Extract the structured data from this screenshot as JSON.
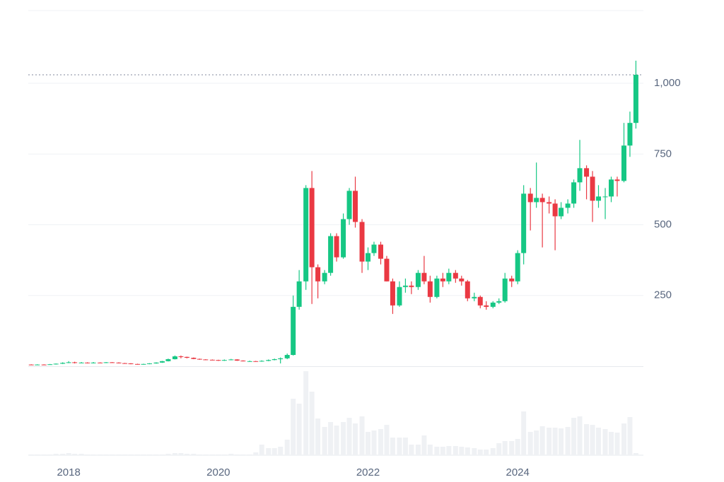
{
  "chart_data": {
    "type": "candlestick",
    "x": [
      2017.5,
      2017.58,
      2017.67,
      2017.75,
      2017.83,
      2017.92,
      2018.0,
      2018.08,
      2018.17,
      2018.25,
      2018.33,
      2018.42,
      2018.5,
      2018.58,
      2018.67,
      2018.75,
      2018.83,
      2018.92,
      2019.0,
      2019.08,
      2019.17,
      2019.25,
      2019.33,
      2019.42,
      2019.5,
      2019.58,
      2019.67,
      2019.75,
      2019.83,
      2019.92,
      2020.0,
      2020.08,
      2020.17,
      2020.25,
      2020.33,
      2020.42,
      2020.5,
      2020.58,
      2020.67,
      2020.75,
      2020.83,
      2020.92,
      2021.0,
      2021.08,
      2021.17,
      2021.25,
      2021.33,
      2021.42,
      2021.5,
      2021.58,
      2021.67,
      2021.75,
      2021.83,
      2021.92,
      2022.0,
      2022.08,
      2022.17,
      2022.25,
      2022.33,
      2022.42,
      2022.5,
      2022.58,
      2022.67,
      2022.75,
      2022.83,
      2022.92,
      2023.0,
      2023.08,
      2023.17,
      2023.25,
      2023.33,
      2023.42,
      2023.5,
      2023.58,
      2023.67,
      2023.75,
      2023.83,
      2023.92,
      2024.0,
      2024.08,
      2024.17,
      2024.25,
      2024.33,
      2024.42,
      2024.5,
      2024.58,
      2024.67,
      2024.75,
      2024.83,
      2024.92,
      2025.0,
      2025.08,
      2025.17,
      2025.25,
      2025.33,
      2025.42,
      2025.5,
      2025.58
    ],
    "open": [
      6,
      5,
      6,
      5,
      7,
      9,
      12,
      14,
      12,
      13,
      11,
      13,
      12,
      14,
      13,
      11,
      10,
      8,
      7,
      8,
      10,
      13,
      18,
      25,
      35,
      33,
      30,
      26,
      24,
      23,
      22,
      20,
      22,
      24,
      20,
      18,
      18,
      17,
      19,
      22,
      25,
      28,
      40,
      210,
      300,
      630,
      350,
      300,
      330,
      460,
      385,
      520,
      620,
      510,
      370,
      400,
      430,
      380,
      300,
      215,
      280,
      285,
      280,
      330,
      300,
      245,
      310,
      300,
      330,
      310,
      300,
      240,
      245,
      215,
      210,
      225,
      230,
      310,
      300,
      400,
      610,
      580,
      595,
      580,
      575,
      530,
      560,
      575,
      650,
      700,
      670,
      585,
      600,
      600,
      660,
      655,
      780,
      860
    ],
    "high": [
      7,
      7,
      7,
      8,
      10,
      14,
      18,
      16,
      15,
      14,
      15,
      14,
      15,
      15,
      14,
      12,
      11,
      9,
      9,
      11,
      14,
      19,
      27,
      38,
      38,
      34,
      31,
      27,
      25,
      24,
      23,
      24,
      26,
      25,
      21,
      20,
      19,
      21,
      24,
      27,
      31,
      45,
      250,
      340,
      640,
      690,
      360,
      340,
      470,
      470,
      540,
      630,
      670,
      520,
      420,
      440,
      440,
      390,
      310,
      300,
      310,
      300,
      340,
      390,
      320,
      320,
      330,
      345,
      340,
      320,
      305,
      260,
      250,
      230,
      230,
      240,
      330,
      320,
      410,
      640,
      630,
      720,
      610,
      600,
      590,
      580,
      590,
      660,
      800,
      710,
      690,
      640,
      630,
      670,
      670,
      860,
      900,
      1080
    ],
    "low": [
      4,
      4,
      4,
      5,
      6,
      8,
      11,
      10,
      11,
      10,
      10,
      11,
      11,
      12,
      10,
      9,
      7,
      6,
      6,
      7,
      9,
      12,
      17,
      24,
      28,
      28,
      25,
      23,
      22,
      21,
      19,
      19,
      21,
      19,
      17,
      17,
      16,
      16,
      18,
      21,
      10,
      25,
      38,
      200,
      270,
      220,
      240,
      290,
      320,
      370,
      380,
      500,
      490,
      330,
      340,
      390,
      360,
      300,
      185,
      210,
      260,
      255,
      270,
      290,
      225,
      240,
      280,
      290,
      295,
      285,
      230,
      230,
      205,
      200,
      205,
      220,
      225,
      280,
      290,
      360,
      480,
      560,
      420,
      540,
      410,
      520,
      540,
      560,
      620,
      590,
      510,
      560,
      520,
      580,
      600,
      650,
      740,
      840
    ],
    "close": [
      5,
      6,
      5,
      7,
      9,
      12,
      14,
      12,
      13,
      11,
      13,
      12,
      14,
      13,
      11,
      10,
      8,
      7,
      8,
      10,
      13,
      18,
      25,
      35,
      33,
      30,
      26,
      24,
      23,
      22,
      20,
      22,
      24,
      20,
      18,
      18,
      17,
      19,
      22,
      25,
      28,
      40,
      210,
      300,
      630,
      350,
      300,
      330,
      460,
      385,
      520,
      620,
      510,
      370,
      400,
      430,
      380,
      300,
      215,
      280,
      285,
      280,
      330,
      300,
      245,
      310,
      300,
      330,
      310,
      300,
      240,
      245,
      215,
      210,
      225,
      230,
      310,
      300,
      400,
      610,
      580,
      595,
      580,
      575,
      530,
      560,
      575,
      650,
      700,
      670,
      585,
      600,
      600,
      660,
      655,
      780,
      860,
      1030
    ],
    "volume": [
      1,
      1,
      1,
      1,
      2,
      2,
      3,
      2,
      2,
      1,
      1,
      1,
      1,
      1,
      1,
      1,
      1,
      1,
      1,
      1,
      1,
      1,
      2,
      3,
      3,
      2,
      2,
      1,
      1,
      1,
      1,
      1,
      2,
      1,
      1,
      1,
      4,
      15,
      10,
      10,
      12,
      22,
      80,
      73,
      119,
      90,
      52,
      40,
      47,
      42,
      47,
      53,
      45,
      55,
      33,
      35,
      37,
      43,
      25,
      25,
      25,
      15,
      15,
      28,
      15,
      12,
      12,
      13,
      13,
      12,
      11,
      10,
      8,
      8,
      10,
      17,
      20,
      20,
      23,
      62,
      33,
      35,
      41,
      39,
      39,
      38,
      40,
      53,
      55,
      44,
      43,
      39,
      37,
      33,
      32,
      45,
      54,
      3
    ],
    "up_color": "#16c784",
    "down_color": "#ea3943",
    "volume_color": "#eff1f4",
    "xlim": [
      2017.46,
      2025.68
    ],
    "xticks": [
      2018,
      2020,
      2022,
      2024
    ],
    "ylim": [
      0,
      1257
    ],
    "yticks": [
      250,
      500,
      750,
      {
        "value": 1000,
        "label": "1,000"
      }
    ],
    "y2lim": [
      0,
      125
    ],
    "grid": true
  }
}
